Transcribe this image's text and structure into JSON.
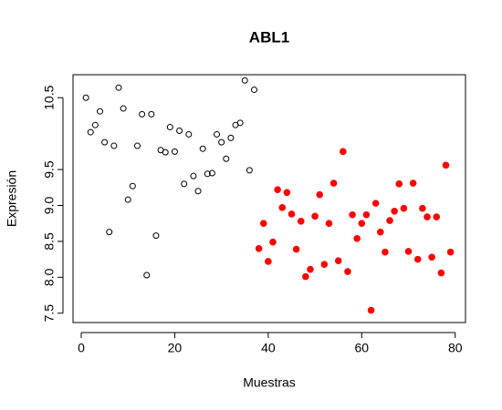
{
  "chart_data": {
    "type": "scatter",
    "title": "ABL1",
    "xlabel": "Muestras",
    "ylabel": "Expresión",
    "xlim": [
      -1.76,
      82.2
    ],
    "ylim": [
      7.37,
      10.82
    ],
    "xticks": [
      0,
      20,
      40,
      60,
      80
    ],
    "yticks": [
      {
        "value": 7.5,
        "label": "7.5"
      },
      {
        "value": 8,
        "label": "8.0"
      },
      {
        "value": 8.5,
        "label": "8.5"
      },
      {
        "value": 9,
        "label": "9.0"
      },
      {
        "value": 9.5,
        "label": "9.5"
      },
      {
        "value": 10.5,
        "label": "10.5"
      }
    ],
    "series": [
      {
        "color": "#000000",
        "filled": false,
        "x": [
          1,
          2,
          3,
          4,
          5,
          6,
          7,
          8,
          9,
          10,
          11,
          12,
          13,
          14,
          15,
          16,
          17,
          18,
          19,
          20,
          21,
          22,
          23,
          24,
          25,
          26,
          27,
          28,
          29,
          30,
          31,
          32,
          33,
          34,
          35,
          36,
          37
        ],
        "values": [
          10.5,
          10.02,
          10.12,
          10.31,
          9.88,
          8.63,
          9.83,
          10.64,
          10.35,
          9.08,
          9.27,
          9.83,
          10.27,
          8.03,
          10.27,
          8.58,
          9.77,
          9.74,
          10.09,
          9.75,
          10.04,
          9.3,
          9.99,
          9.41,
          9.2,
          9.79,
          9.44,
          9.45,
          9.99,
          9.88,
          9.65,
          9.94,
          10.12,
          10.15,
          10.74,
          9.49,
          10.61
        ]
      },
      {
        "color": "#ff0000",
        "filled": true,
        "x": [
          38,
          39,
          40,
          41,
          42,
          43,
          44,
          45,
          46,
          47,
          48,
          49,
          50,
          51,
          52,
          53,
          54,
          55,
          56,
          57,
          58,
          59,
          60,
          61,
          62,
          63,
          64,
          65,
          66,
          67,
          68,
          69,
          70,
          71,
          72,
          73,
          74,
          75,
          76,
          77,
          78,
          79
        ],
        "values": [
          8.4,
          8.75,
          8.22,
          8.49,
          9.22,
          8.97,
          9.18,
          8.88,
          8.39,
          8.78,
          8.01,
          8.11,
          8.85,
          9.15,
          8.18,
          8.75,
          9.31,
          8.23,
          9.75,
          8.08,
          8.87,
          8.54,
          8.75,
          8.87,
          7.54,
          9.03,
          8.63,
          8.35,
          8.79,
          8.92,
          9.3,
          8.96,
          8.36,
          9.31,
          8.25,
          8.96,
          8.84,
          8.28,
          8.84,
          8.06,
          9.56,
          8.35
        ]
      }
    ]
  }
}
